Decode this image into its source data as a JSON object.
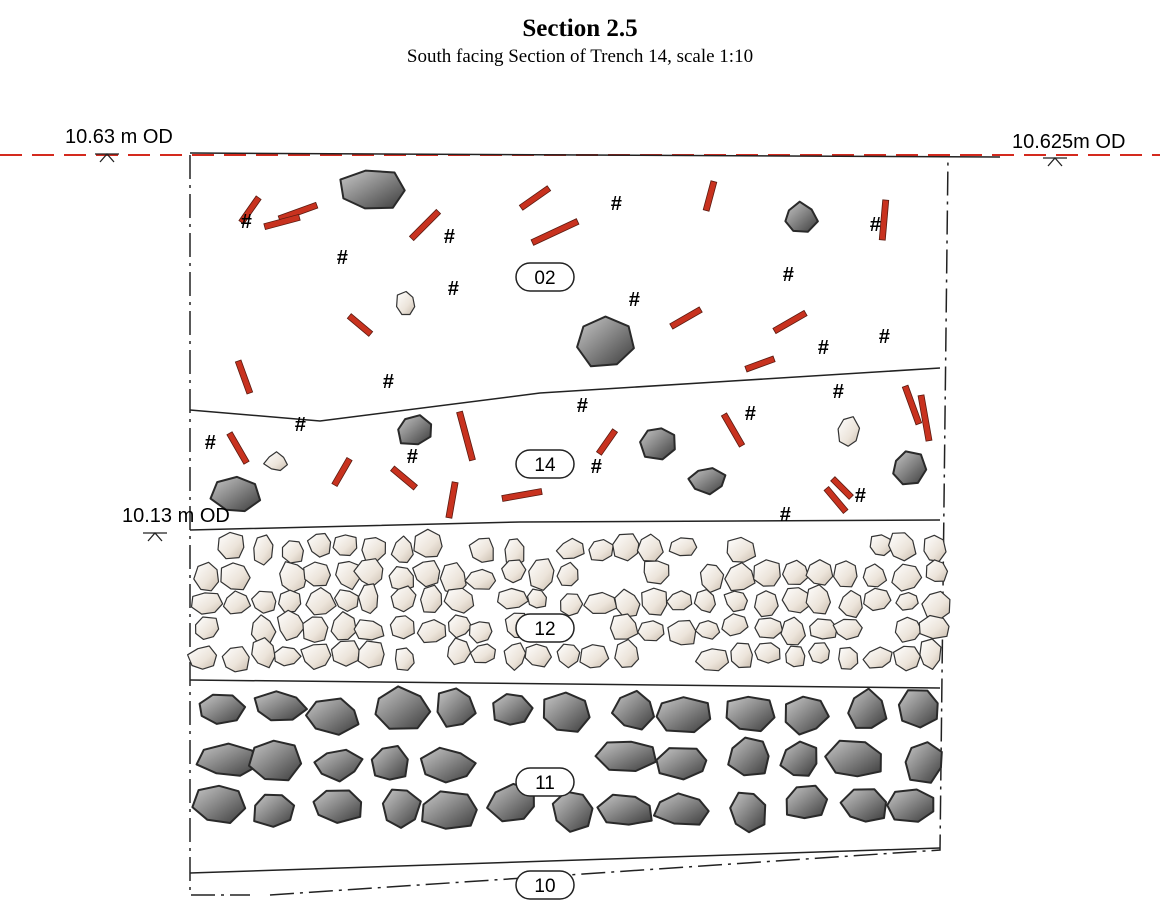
{
  "header": {
    "title": "Section 2.5",
    "subtitle": "South facing Section of Trench 14, scale 1:10"
  },
  "levels": [
    "10.63 m OD",
    "10.625m OD",
    "10.13 m OD"
  ],
  "contexts": [
    "02",
    "14",
    "12",
    "11",
    "10"
  ],
  "symbols": {
    "charcoal": "#"
  }
}
